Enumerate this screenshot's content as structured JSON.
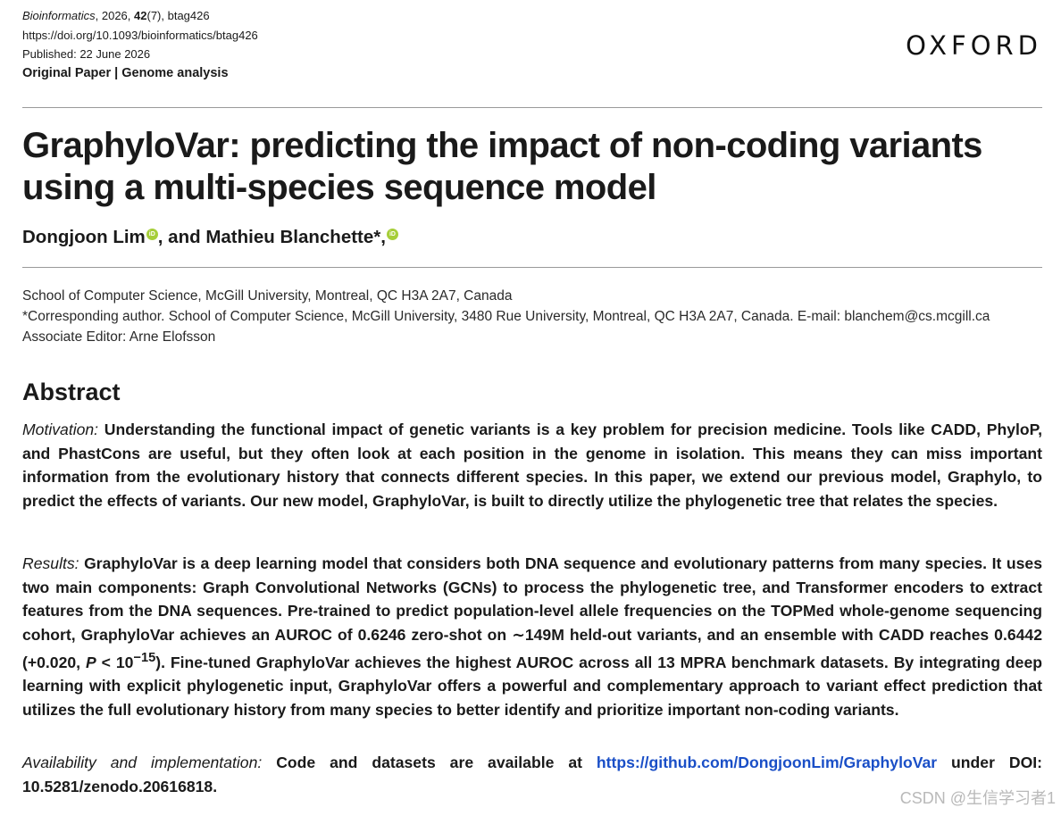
{
  "header": {
    "journal": "Bioinformatics",
    "citation_rest": ", 2026, ",
    "volume": "42",
    "issue_article": "(7), btag426",
    "doi": "https://doi.org/10.1093/bioinformatics/btag426",
    "published": "Published: 22 June 2026",
    "section": "Original Paper | Genome analysis",
    "publisher_logo": "OXFORD"
  },
  "article": {
    "title": "GraphyloVar: predicting the impact of non-coding variants using a multi-species sequence model",
    "author1": "Dongjoon Lim",
    "author_sep": ", and ",
    "author2": "Mathieu Blanchette",
    "author2_mark": "*,",
    "orcid_icon": "iD"
  },
  "affiliations": {
    "line1": "School of Computer Science, McGill University, Montreal, QC H3A 2A7, Canada",
    "line2": "*Corresponding author. School of Computer Science, McGill University, 3480 Rue University, Montreal, QC H3A 2A7, Canada. E-mail: blanchem@cs.mcgill.ca",
    "line3": "Associate Editor: Arne Elofsson"
  },
  "abstract": {
    "heading": "Abstract",
    "motivation_label": "Motivation:",
    "motivation_text": " Understanding the functional impact of genetic variants is a key problem for precision medicine. Tools like CADD, PhyloP, and PhastCons are useful, but they often look at each position in the genome in isolation. This means they can miss important information from the evolutionary history that connects different species. In this paper, we extend our previous model, Graphylo, to predict the effects of variants. Our new model, GraphyloVar, is built to directly utilize the phylogenetic tree that relates the species.",
    "results_label": "Results:",
    "results_text_a": " GraphyloVar is a deep learning model that considers both DNA sequence and evolutionary patterns from many species. It uses two main components: Graph Convolutional Networks (GCNs) to process the phylogenetic tree, and Transformer encoders to extract features from the DNA sequences. Pre-trained to predict population-level allele frequencies on the TOPMed whole-genome sequencing cohort, GraphyloVar achieves an AUROC of 0.6246 zero-shot on ∼149M held-out variants, and an ensemble with CADD reaches 0.6442 (+0.020, ",
    "results_p": "P",
    "results_lt": " < 10",
    "results_exp": "−15",
    "results_text_b": "). Fine-tuned GraphyloVar achieves the highest AUROC across all 13 MPRA benchmark datasets. By integrating deep learning with explicit phylogenetic input, GraphyloVar offers a powerful and complementary approach to variant effect prediction that utilizes the full evolutionary history from many species to better identify and prioritize important non-coding variants.",
    "availability_label": "Availability and implementation:",
    "availability_text_a": " Code and datasets are available at ",
    "availability_link": "https://github.com/DongjoonLim/GraphyloVar",
    "availability_text_b": " under DOI: 10.5281/zenodo.20616818."
  },
  "watermark": "CSDN @生信学习者1"
}
